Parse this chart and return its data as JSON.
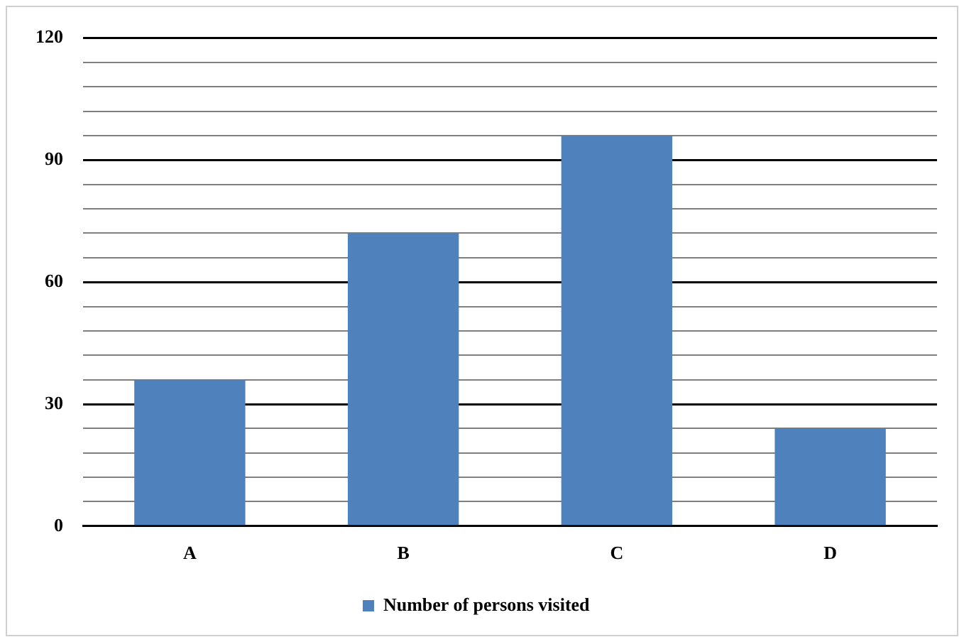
{
  "chart_data": {
    "type": "bar",
    "categories": [
      "A",
      "B",
      "C",
      "D"
    ],
    "series": [
      {
        "name": "Number of persons visited",
        "color": "#4f81bd",
        "values": [
          36,
          72,
          96,
          24
        ]
      }
    ],
    "ylim": [
      0,
      120
    ],
    "yticks": [
      0,
      {
        "value": 6,
        "label": null
      },
      {
        "value": 12,
        "label": null
      },
      {
        "value": 18,
        "label": null
      },
      {
        "value": 24,
        "label": null
      },
      30,
      {
        "value": 36,
        "label": null
      },
      {
        "value": 42,
        "label": null
      },
      {
        "value": 48,
        "label": null
      },
      {
        "value": 54,
        "label": null
      },
      60,
      {
        "value": 66,
        "label": null
      },
      {
        "value": 72,
        "label": null
      },
      {
        "value": 78,
        "label": null
      },
      {
        "value": 84,
        "label": null
      },
      90,
      {
        "value": 96,
        "label": null
      },
      {
        "value": 102,
        "label": null
      },
      {
        "value": 108,
        "label": null
      },
      {
        "value": 114,
        "label": null
      },
      120
    ],
    "grid": "y",
    "legend": "bottom"
  }
}
